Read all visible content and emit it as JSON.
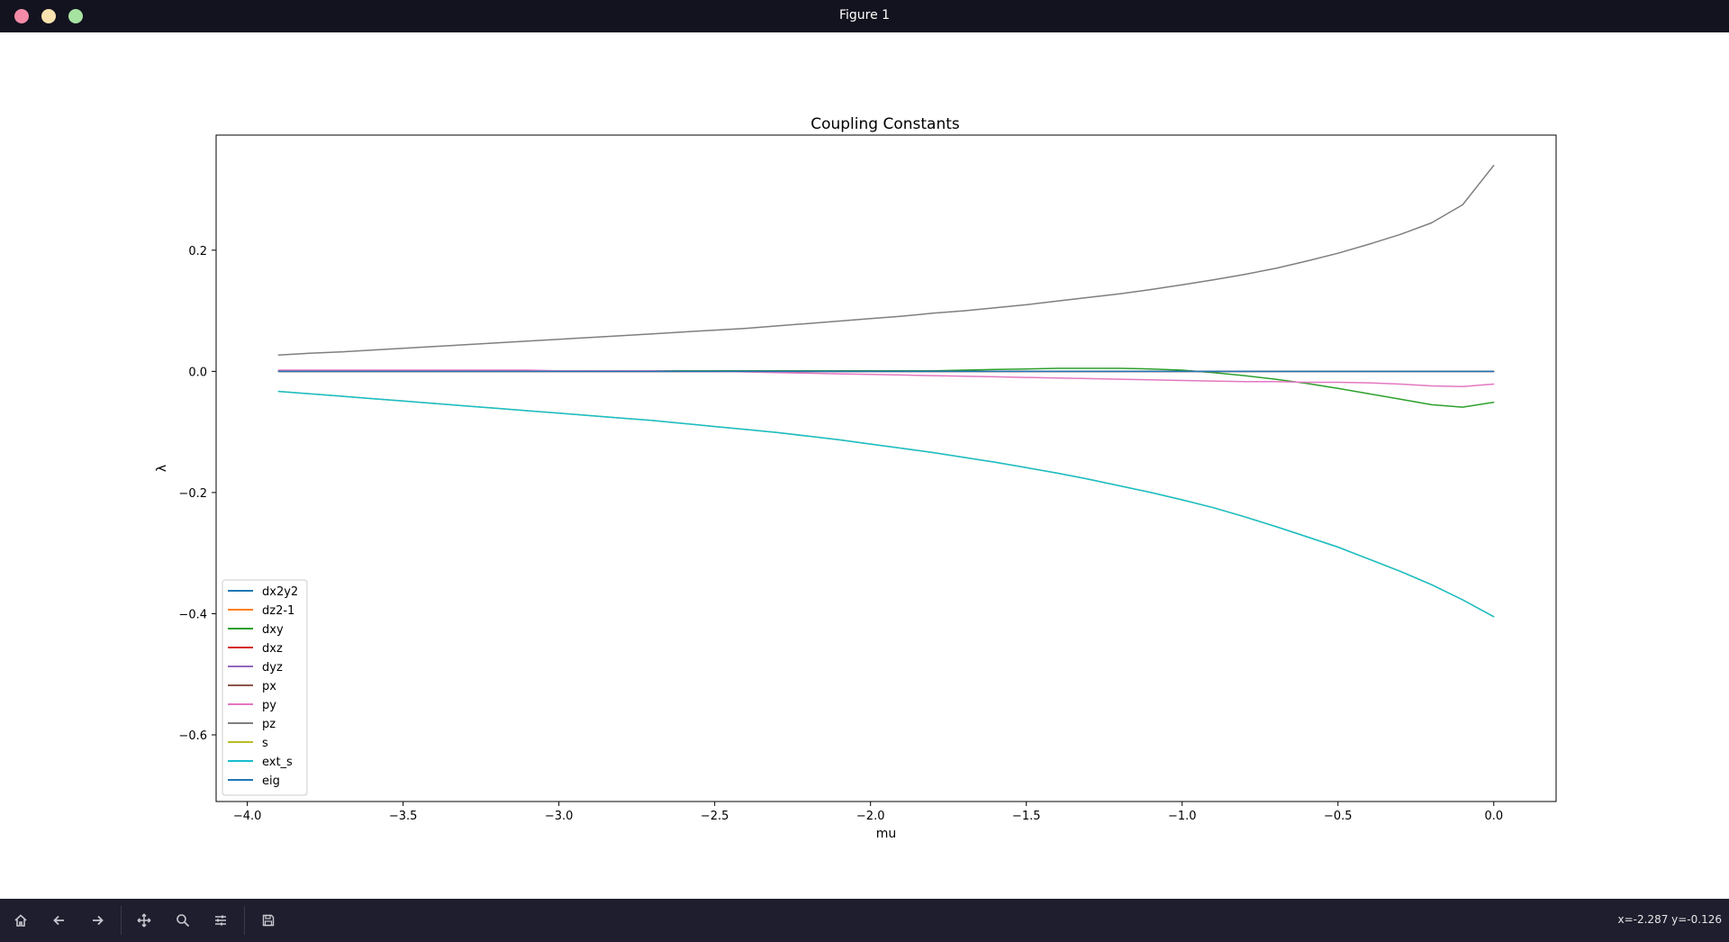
{
  "window": {
    "title": "Figure 1"
  },
  "toolbar": {
    "buttons": [
      "home-icon",
      "back-icon",
      "forward-icon",
      "pan-icon",
      "zoom-icon",
      "configure-icon",
      "save-icon"
    ],
    "coords": "x=-2.287 y=-0.126"
  },
  "chart_data": {
    "type": "line",
    "title": "Coupling Constants",
    "xlabel": "mu",
    "ylabel": "λ",
    "xlim": [
      -4.1,
      0.2
    ],
    "ylim": [
      -0.71,
      0.39
    ],
    "xticks": [
      -4.0,
      -3.5,
      -3.0,
      -2.5,
      -2.0,
      -1.5,
      -1.0,
      -0.5,
      0.0
    ],
    "xtick_labels": [
      "−4.0",
      "−3.5",
      "−3.0",
      "−2.5",
      "−2.0",
      "−1.5",
      "−1.0",
      "−0.5",
      "0.0"
    ],
    "yticks": [
      0.2,
      0.0,
      -0.2,
      -0.4,
      -0.6
    ],
    "ytick_labels": [
      "0.2",
      "0.0",
      "−0.2",
      "−0.4",
      "−0.6"
    ],
    "legend_position": "lower-left",
    "grid": false,
    "x": [
      -3.9,
      -3.8,
      -3.7,
      -3.6,
      -3.5,
      -3.4,
      -3.3,
      -3.2,
      -3.1,
      -3.0,
      -2.9,
      -2.8,
      -2.7,
      -2.6,
      -2.5,
      -2.4,
      -2.3,
      -2.2,
      -2.1,
      -2.0,
      -1.9,
      -1.8,
      -1.7,
      -1.6,
      -1.5,
      -1.4,
      -1.3,
      -1.2,
      -1.1,
      -1.0,
      -0.9,
      -0.8,
      -0.7,
      -0.6,
      -0.5,
      -0.4,
      -0.3,
      -0.2,
      -0.1,
      0.0
    ],
    "series": [
      {
        "name": "dx2y2",
        "color": "#1f77b4",
        "values": [
          0,
          0,
          0,
          0,
          0,
          0,
          0,
          0,
          0,
          0,
          0,
          0,
          0,
          0,
          0,
          0,
          0,
          0,
          0,
          0,
          0,
          0,
          0,
          0,
          0,
          0,
          0,
          0,
          0,
          0,
          0,
          0,
          0,
          0,
          0,
          0,
          0,
          0,
          0,
          0
        ]
      },
      {
        "name": "dz2-1",
        "color": "#ff7f0e",
        "values": [
          0,
          0,
          0,
          0,
          0,
          0,
          0,
          0,
          0,
          0,
          0,
          0,
          0,
          0,
          0,
          0,
          0,
          0,
          0,
          0,
          0,
          0,
          0,
          0,
          0,
          0,
          0,
          0,
          0,
          0,
          0,
          0,
          0,
          0,
          0,
          0,
          0,
          0,
          0,
          0
        ]
      },
      {
        "name": "dxy",
        "color": "#2ca02c",
        "values": [
          0.001,
          0.001,
          0.001,
          0.001,
          0.001,
          0.001,
          0.001,
          0.001,
          0.001,
          0.001,
          0.001,
          0.001,
          0.001,
          0.001,
          0.001,
          0.001,
          0.001,
          0.001,
          0.001,
          0.001,
          0.001,
          0.001,
          0.002,
          0.003,
          0.004,
          0.005,
          0.005,
          0.005,
          0.004,
          0.002,
          -0.002,
          -0.007,
          -0.013,
          -0.02,
          -0.028,
          -0.037,
          -0.046,
          -0.055,
          -0.059,
          -0.051
        ]
      },
      {
        "name": "dxz",
        "color": "#d62728",
        "values": [
          0,
          0,
          0,
          0,
          0,
          0,
          0,
          0,
          0,
          0,
          0,
          0,
          0,
          0,
          0,
          0,
          0,
          0,
          0,
          0,
          0,
          0,
          0,
          0,
          0,
          0,
          0,
          0,
          0,
          0,
          0,
          0,
          0,
          0,
          0,
          0,
          0,
          0,
          0,
          0
        ]
      },
      {
        "name": "dyz",
        "color": "#9467bd",
        "values": [
          0,
          0,
          0,
          0,
          0,
          0,
          0,
          0,
          0,
          0,
          0,
          0,
          0,
          0,
          0,
          0,
          0,
          0,
          0,
          0,
          0,
          0,
          0,
          0,
          0,
          0,
          0,
          0,
          0,
          0,
          0,
          0,
          0,
          0,
          0,
          0,
          0,
          0,
          0,
          0
        ]
      },
      {
        "name": "px",
        "color": "#8c564b",
        "values": [
          0,
          0,
          0,
          0,
          0,
          0,
          0,
          0,
          0,
          0,
          0,
          0,
          0,
          0,
          0,
          0,
          0,
          0,
          0,
          0,
          0,
          0,
          0,
          0,
          0,
          0,
          0,
          0,
          0,
          0,
          0,
          0,
          0,
          0,
          0,
          0,
          0,
          0,
          0,
          0
        ]
      },
      {
        "name": "py",
        "color": "#e377c2",
        "values": [
          0.002,
          0.002,
          0.002,
          0.002,
          0.002,
          0.002,
          0.002,
          0.002,
          0.002,
          0.001,
          0.001,
          0.001,
          0.001,
          0.0,
          0.0,
          -0.001,
          -0.002,
          -0.003,
          -0.004,
          -0.005,
          -0.006,
          -0.007,
          -0.008,
          -0.009,
          -0.01,
          -0.011,
          -0.012,
          -0.013,
          -0.014,
          -0.015,
          -0.016,
          -0.017,
          -0.017,
          -0.018,
          -0.018,
          -0.019,
          -0.021,
          -0.024,
          -0.025,
          -0.021
        ]
      },
      {
        "name": "pz",
        "color": "#7f7f7f",
        "values": [
          0.027,
          0.03,
          0.032,
          0.035,
          0.038,
          0.041,
          0.044,
          0.047,
          0.05,
          0.053,
          0.056,
          0.059,
          0.062,
          0.065,
          0.068,
          0.071,
          0.075,
          0.079,
          0.083,
          0.087,
          0.091,
          0.096,
          0.1,
          0.105,
          0.11,
          0.116,
          0.122,
          0.128,
          0.135,
          0.143,
          0.151,
          0.16,
          0.17,
          0.182,
          0.195,
          0.21,
          0.226,
          0.245,
          0.275,
          0.34
        ]
      },
      {
        "name": "s",
        "color": "#bcbd22",
        "values": [
          -0.033,
          -0.037,
          -0.041,
          -0.045,
          -0.049,
          -0.053,
          -0.057,
          -0.061,
          -0.065,
          -0.069,
          -0.073,
          -0.077,
          -0.081,
          -0.086,
          -0.091,
          -0.096,
          -0.101,
          -0.107,
          -0.113,
          -0.12,
          -0.127,
          -0.134,
          -0.142,
          -0.15,
          -0.159,
          -0.168,
          -0.178,
          -0.189,
          -0.2,
          -0.212,
          -0.225,
          -0.24,
          -0.256,
          -0.273,
          -0.29,
          -0.31,
          -0.33,
          -0.352,
          -0.377,
          -0.405
        ]
      },
      {
        "name": "ext_s",
        "color": "#17becf",
        "values": [
          -0.033,
          -0.037,
          -0.041,
          -0.045,
          -0.049,
          -0.053,
          -0.057,
          -0.061,
          -0.065,
          -0.069,
          -0.073,
          -0.077,
          -0.081,
          -0.086,
          -0.091,
          -0.096,
          -0.101,
          -0.107,
          -0.113,
          -0.12,
          -0.127,
          -0.134,
          -0.142,
          -0.15,
          -0.159,
          -0.168,
          -0.178,
          -0.189,
          -0.2,
          -0.212,
          -0.225,
          -0.24,
          -0.256,
          -0.273,
          -0.29,
          -0.31,
          -0.33,
          -0.352,
          -0.377,
          -0.405
        ]
      },
      {
        "name": "eig",
        "color": "#1f77b4",
        "values": [
          0,
          0,
          0,
          0,
          0,
          0,
          0,
          0,
          0,
          0,
          0,
          0,
          0,
          0,
          0,
          0,
          0,
          0,
          0,
          0,
          0,
          0,
          0,
          0,
          0,
          0,
          0,
          0,
          0,
          0,
          0,
          0,
          0,
          0,
          0,
          0,
          0,
          0,
          0,
          0
        ]
      }
    ]
  }
}
